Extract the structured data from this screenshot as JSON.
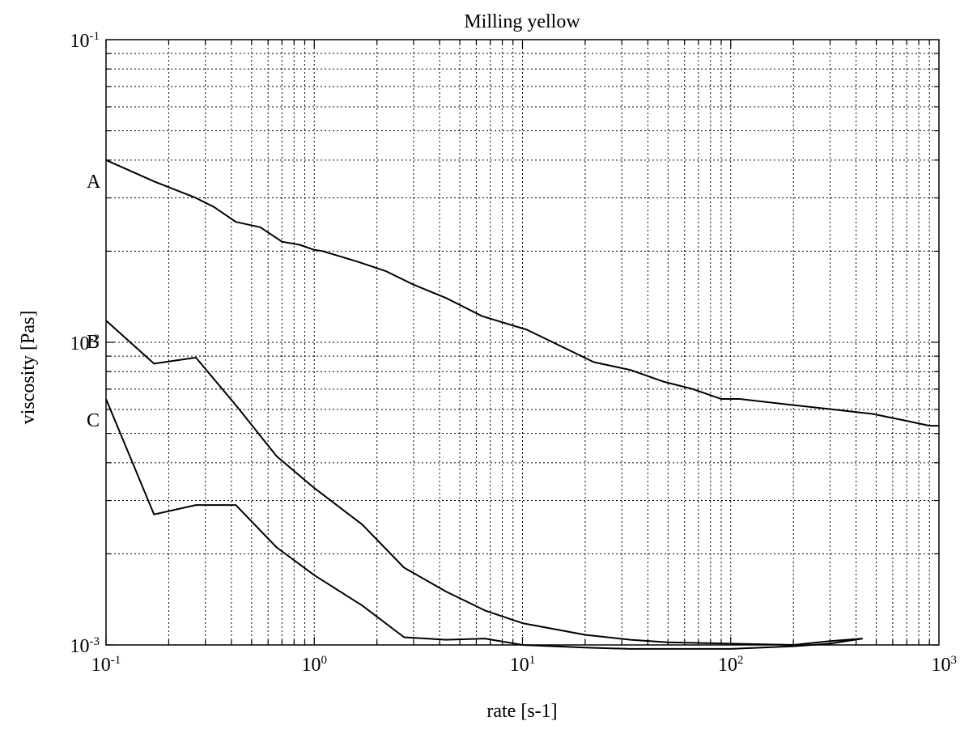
{
  "chart_data": {
    "type": "line",
    "title": "Milling yellow",
    "xlabel": "rate [s-1]",
    "ylabel": "viscosity [Pas]",
    "xscale": "log",
    "yscale": "log",
    "xlim": [
      0.1,
      1000
    ],
    "ylim": [
      0.001,
      0.1
    ],
    "grid": true,
    "xticks": [
      {
        "base": "10",
        "exp": "-1",
        "value": 0.1
      },
      {
        "base": "10",
        "exp": "0",
        "value": 1
      },
      {
        "base": "10",
        "exp": "1",
        "value": 10
      },
      {
        "base": "10",
        "exp": "2",
        "value": 100
      },
      {
        "base": "10",
        "exp": "3",
        "value": 1000
      }
    ],
    "yticks": [
      {
        "base": "10",
        "exp": "-3",
        "value": 0.001
      },
      {
        "base": "10",
        "exp": "-2",
        "value": 0.01
      },
      {
        "base": "10",
        "exp": "-1",
        "value": 0.1
      }
    ],
    "series": [
      {
        "name": "A",
        "x": [
          0.1,
          0.17,
          0.27,
          0.33,
          0.42,
          0.55,
          0.7,
          0.85,
          1.0,
          1.1,
          1.6,
          2.2,
          3.0,
          4.3,
          6.4,
          10.5,
          22,
          33,
          48,
          66,
          90,
          110,
          200,
          310,
          480,
          700,
          900,
          1000
        ],
        "y": [
          0.04,
          0.034,
          0.03,
          0.028,
          0.025,
          0.024,
          0.0215,
          0.021,
          0.0202,
          0.02,
          0.0185,
          0.0172,
          0.0155,
          0.014,
          0.0122,
          0.011,
          0.0086,
          0.0081,
          0.0074,
          0.007,
          0.0065,
          0.0065,
          0.0062,
          0.006,
          0.0058,
          0.0055,
          0.0053,
          0.0053
        ]
      },
      {
        "name": "B",
        "x": [
          0.1,
          0.17,
          0.27,
          0.42,
          0.66,
          1.0,
          1.7,
          2.7,
          4.3,
          6.6,
          10,
          20,
          33,
          50,
          100,
          200,
          300,
          430
        ],
        "y": [
          0.0118,
          0.0085,
          0.0089,
          0.0062,
          0.0042,
          0.0033,
          0.0025,
          0.0018,
          0.0015,
          0.0013,
          0.00118,
          0.00108,
          0.00104,
          0.00102,
          0.00101,
          0.001,
          0.00103,
          0.00105
        ]
      },
      {
        "name": "C",
        "x": [
          0.1,
          0.17,
          0.27,
          0.42,
          0.66,
          1.0,
          1.7,
          2.7,
          4.3,
          6.6,
          10,
          20,
          33,
          50,
          100,
          200,
          300,
          430
        ],
        "y": [
          0.0065,
          0.0027,
          0.0029,
          0.0029,
          0.0021,
          0.0017,
          0.00135,
          0.00106,
          0.00104,
          0.00105,
          0.001,
          0.00098,
          0.00097,
          0.00097,
          0.00097,
          0.00099,
          0.00101,
          0.00105
        ]
      }
    ]
  }
}
